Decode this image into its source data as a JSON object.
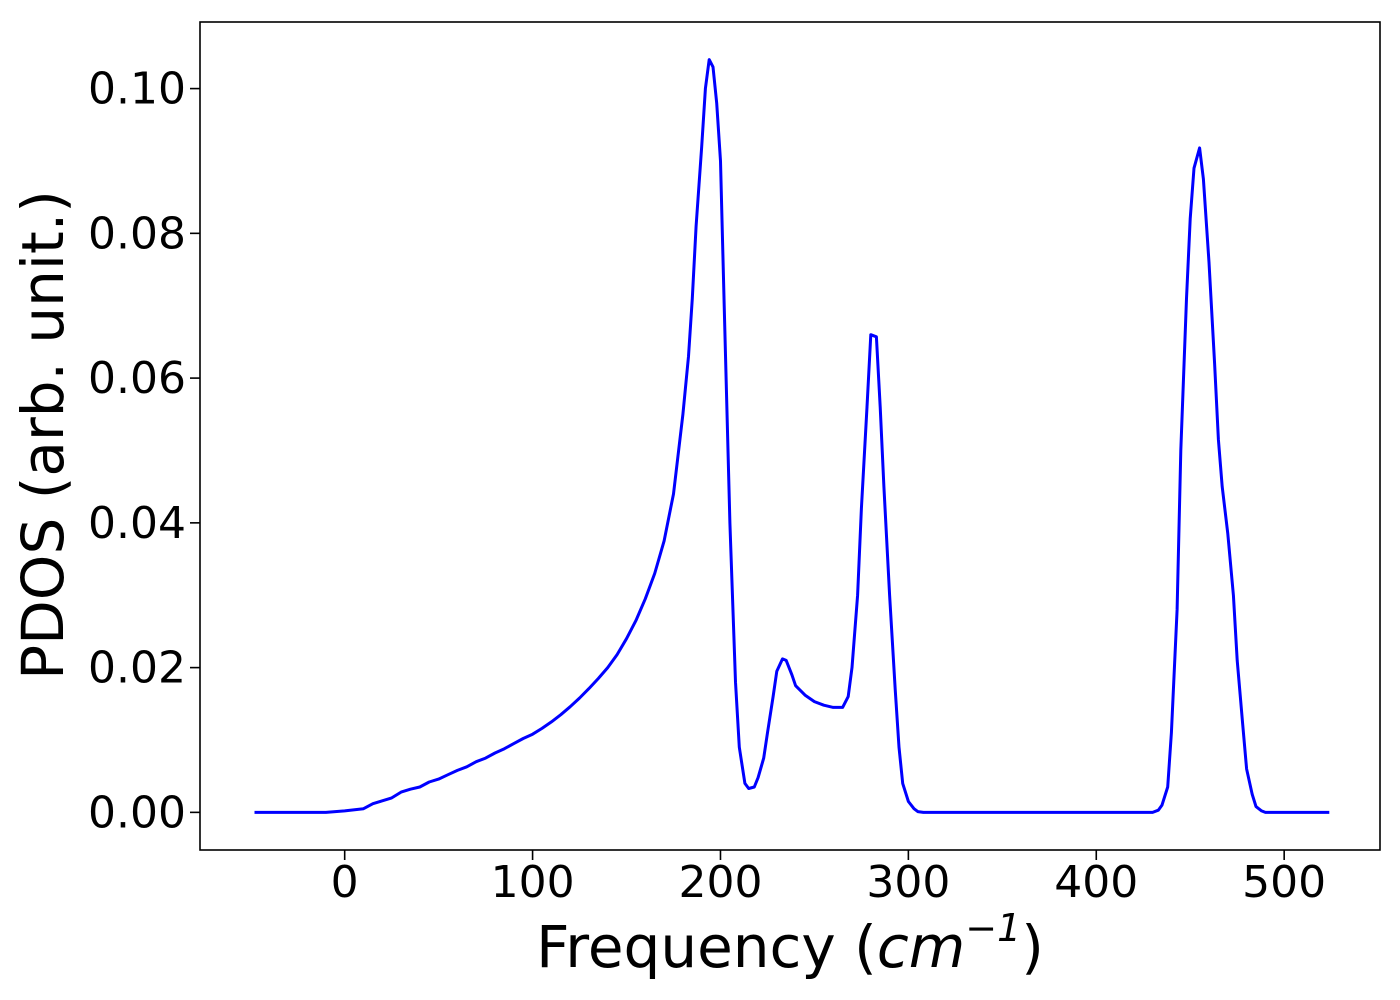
{
  "chart_data": {
    "type": "line",
    "title": "",
    "xlabel": "Frequency",
    "xlabel_unit_base": "cm",
    "xlabel_unit_exp": "−1",
    "ylabel": "PDOS (arb. unit.)",
    "xlim": [
      -77,
      551
    ],
    "ylim": [
      -0.0052,
      0.1092
    ],
    "xticks": [
      0,
      100,
      200,
      300,
      400,
      500
    ],
    "xtick_labels": [
      "0",
      "100",
      "200",
      "300",
      "400",
      "500"
    ],
    "yticks": [
      0.0,
      0.02,
      0.04,
      0.06,
      0.08,
      0.1
    ],
    "ytick_labels": [
      "0.00",
      "0.02",
      "0.04",
      "0.06",
      "0.08",
      "0.10"
    ],
    "grid": false,
    "legend": "none",
    "series": [
      {
        "color": "#0000ff",
        "x": [
          -48,
          -20,
          -10,
          0,
          10,
          15,
          20,
          25,
          30,
          35,
          40,
          45,
          50,
          55,
          60,
          65,
          70,
          75,
          80,
          85,
          90,
          95,
          100,
          105,
          110,
          115,
          120,
          125,
          130,
          135,
          140,
          145,
          150,
          155,
          160,
          165,
          170,
          175,
          180,
          183,
          185,
          187,
          190,
          192,
          194,
          196,
          198,
          200,
          202,
          205,
          208,
          210,
          213,
          215,
          218,
          220,
          223,
          225,
          228,
          230,
          233,
          235,
          238,
          240,
          245,
          250,
          255,
          260,
          265,
          268,
          270,
          273,
          275,
          278,
          280,
          283,
          285,
          287,
          290,
          293,
          295,
          297,
          300,
          303,
          305,
          308,
          310,
          320,
          350,
          400,
          430,
          433,
          435,
          438,
          440,
          443,
          445,
          448,
          450,
          452,
          455,
          457,
          460,
          463,
          465,
          467,
          470,
          473,
          475,
          478,
          480,
          483,
          485,
          488,
          490,
          493,
          495,
          500,
          524
        ],
        "y": [
          0,
          0,
          0,
          0.0002,
          0.0005,
          0.0012,
          0.0016,
          0.002,
          0.0028,
          0.0032,
          0.0035,
          0.0042,
          0.0046,
          0.0052,
          0.0058,
          0.0063,
          0.007,
          0.0075,
          0.0082,
          0.0088,
          0.0095,
          0.0102,
          0.0108,
          0.0116,
          0.0125,
          0.0135,
          0.0146,
          0.0158,
          0.0171,
          0.0185,
          0.02,
          0.0218,
          0.024,
          0.0265,
          0.0295,
          0.033,
          0.0375,
          0.044,
          0.055,
          0.063,
          0.071,
          0.081,
          0.092,
          0.1,
          0.104,
          0.103,
          0.098,
          0.09,
          0.07,
          0.04,
          0.018,
          0.009,
          0.004,
          0.0033,
          0.0035,
          0.0048,
          0.0075,
          0.011,
          0.016,
          0.0195,
          0.0212,
          0.021,
          0.019,
          0.0175,
          0.0162,
          0.0153,
          0.0148,
          0.0145,
          0.0145,
          0.016,
          0.02,
          0.03,
          0.042,
          0.056,
          0.066,
          0.0657,
          0.056,
          0.045,
          0.03,
          0.017,
          0.009,
          0.004,
          0.0015,
          0.0005,
          0.0001,
          0,
          0,
          0,
          0,
          0,
          0,
          0.0003,
          0.001,
          0.0035,
          0.011,
          0.028,
          0.05,
          0.071,
          0.082,
          0.089,
          0.0918,
          0.0875,
          0.076,
          0.062,
          0.0515,
          0.045,
          0.0385,
          0.03,
          0.021,
          0.012,
          0.006,
          0.0025,
          0.0008,
          0.0002,
          0,
          0,
          0,
          0,
          0
        ]
      }
    ]
  }
}
